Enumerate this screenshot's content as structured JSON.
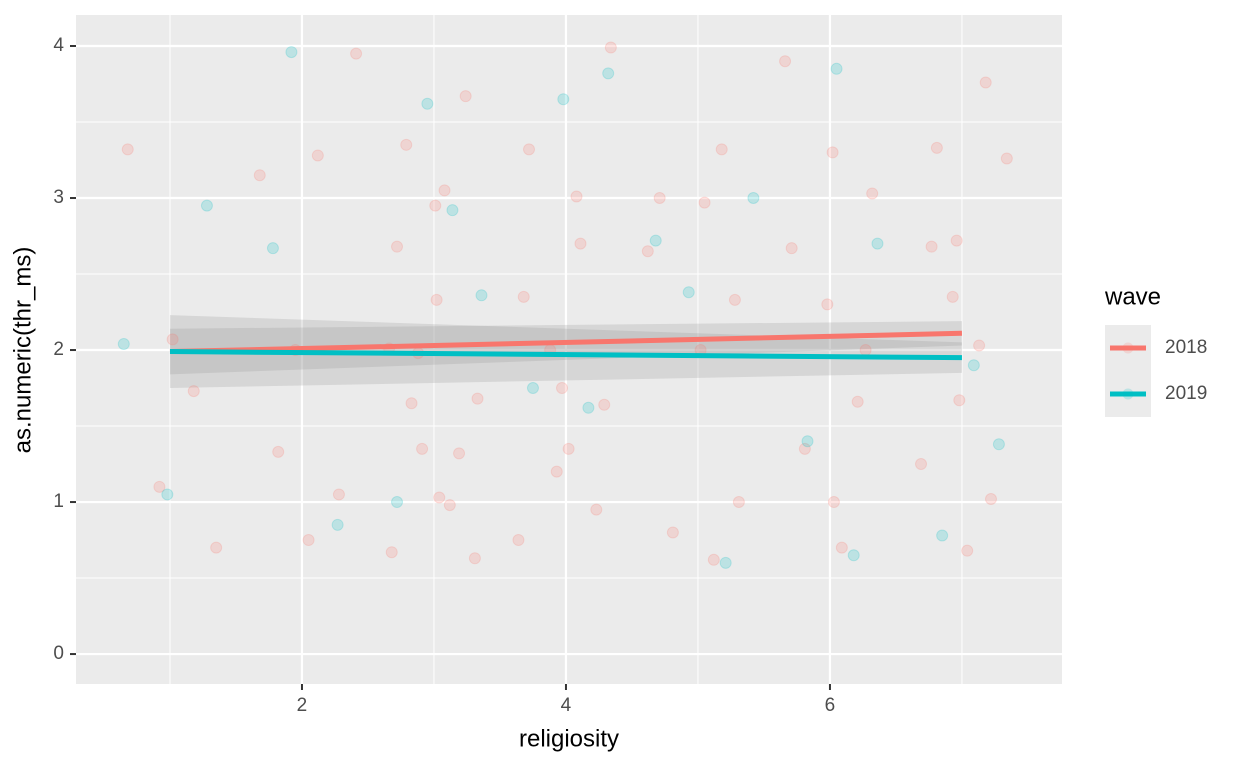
{
  "chart_data": {
    "type": "scatter",
    "x_label": "religiosity",
    "y_label": "as.numeric(thr_ms)",
    "legend_title": "wave",
    "legend": "right",
    "grid": true,
    "xlim": [
      0.288,
      7.758
    ],
    "ylim": [
      -0.197,
      4.204
    ],
    "xticks": [
      2,
      4,
      6
    ],
    "yticks": [
      0,
      1,
      2,
      3,
      4
    ],
    "xminor": [
      1,
      3,
      5,
      7
    ],
    "yminor": [
      0.5,
      1.5,
      2.5,
      3.5
    ],
    "series": [
      {
        "name": "2018",
        "color": "#F8766D",
        "x": [
          0.68,
          0.92,
          1.02,
          1.18,
          1.35,
          1.68,
          1.82,
          1.95,
          2.05,
          2.12,
          2.28,
          2.41,
          2.68,
          2.79,
          2.91,
          3.02,
          3.12,
          3.24,
          3.33,
          2.72,
          2.88,
          3.08,
          3.31,
          2.83,
          3.01,
          3.19,
          3.64,
          3.72,
          3.88,
          4.02,
          4.11,
          4.23,
          4.34,
          3.68,
          3.93,
          4.08,
          4.29,
          4.62,
          4.81,
          5.02,
          5.18,
          5.31,
          4.71,
          5.12,
          5.28,
          5.66,
          5.81,
          5.98,
          6.09,
          6.21,
          6.32,
          5.71,
          6.03,
          6.27,
          6.69,
          6.81,
          6.93,
          7.04,
          7.13,
          7.22,
          7.34,
          6.77,
          6.98,
          7.18,
          2.66,
          3.04,
          3.97,
          5.05,
          6.02,
          6.96
        ],
        "values": [
          3.32,
          1.1,
          2.07,
          1.73,
          0.7,
          3.15,
          1.33,
          2.0,
          0.75,
          3.28,
          1.05,
          3.95,
          0.67,
          3.35,
          1.35,
          2.33,
          0.98,
          3.67,
          1.68,
          2.68,
          1.98,
          3.05,
          0.63,
          1.65,
          2.95,
          1.32,
          0.75,
          3.32,
          2.0,
          1.35,
          2.7,
          0.95,
          3.99,
          2.35,
          1.2,
          3.01,
          1.64,
          2.65,
          0.8,
          2.0,
          3.32,
          1.0,
          3.0,
          0.62,
          2.33,
          3.9,
          1.35,
          2.3,
          0.7,
          1.66,
          3.03,
          2.67,
          1.0,
          2.0,
          1.25,
          3.33,
          2.35,
          0.68,
          2.03,
          1.02,
          3.26,
          2.68,
          1.67,
          3.76,
          2.01,
          1.03,
          1.75,
          2.97,
          3.3,
          2.72
        ],
        "fit": {
          "x": [
            1,
            7
          ],
          "values": [
            1.99,
            2.11
          ],
          "lower": [
            1.84,
            2.03
          ],
          "upper": [
            2.14,
            2.19
          ]
        }
      },
      {
        "name": "2019",
        "color": "#00BFC4",
        "x": [
          0.65,
          0.98,
          1.28,
          1.78,
          1.92,
          2.27,
          2.72,
          2.95,
          3.14,
          3.36,
          3.75,
          3.98,
          4.17,
          4.32,
          4.68,
          4.93,
          5.21,
          5.42,
          5.83,
          6.05,
          6.18,
          6.36,
          6.85,
          7.09,
          7.28
        ],
        "values": [
          2.04,
          1.05,
          2.95,
          2.67,
          3.96,
          0.85,
          1.0,
          3.62,
          2.92,
          2.36,
          1.75,
          3.65,
          1.62,
          3.82,
          2.72,
          2.38,
          0.6,
          3.0,
          1.4,
          3.85,
          0.65,
          2.7,
          0.78,
          1.9,
          1.38
        ],
        "fit": {
          "x": [
            1,
            7
          ],
          "values": [
            1.99,
            1.95
          ],
          "lower": [
            1.75,
            1.85
          ],
          "upper": [
            2.23,
            2.05
          ]
        }
      }
    ]
  }
}
